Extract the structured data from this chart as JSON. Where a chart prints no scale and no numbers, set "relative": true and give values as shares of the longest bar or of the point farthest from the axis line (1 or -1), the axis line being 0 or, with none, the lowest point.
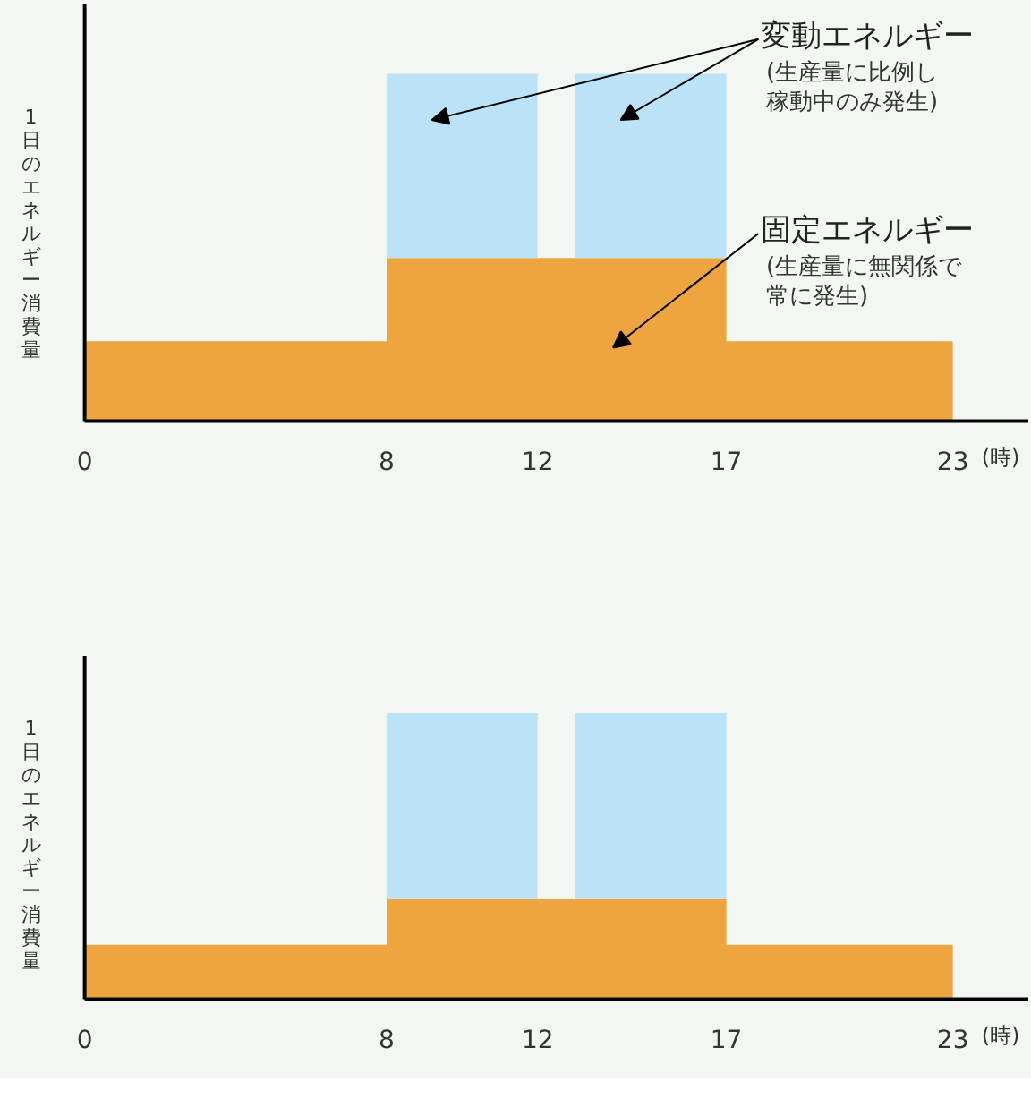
{
  "chart_data": [
    {
      "type": "area",
      "stacked": true,
      "relative": true,
      "ylabel": "1日のエネルギー消費量",
      "xlabel": "(時)",
      "x": [
        0,
        8,
        8,
        12,
        12,
        13,
        13,
        17,
        17,
        23
      ],
      "xlim": [
        0,
        25
      ],
      "xticks": [
        0,
        8,
        12,
        17,
        23
      ],
      "grid": false,
      "series": [
        {
          "name": "固定エネルギー",
          "color": "#efa53f",
          "values": [
            0.23,
            0.23,
            0.47,
            0.47,
            0.47,
            0.47,
            0.47,
            0.47,
            0.23,
            0.23
          ]
        },
        {
          "name": "変動エネルギー",
          "color": "#bbe2f7",
          "values": [
            0,
            0,
            0.53,
            0.53,
            0,
            0,
            0.53,
            0.53,
            0,
            0
          ]
        }
      ],
      "annotations": [
        "(生産量に無関係で",
        "常に発生)",
        "(生産量に比例し",
        "稼動中のみ発生)"
      ]
    },
    {
      "type": "area",
      "stacked": true,
      "relative": true,
      "ylabel": "1日のエネルギー消費量",
      "xlabel": "(時)",
      "x": [
        0,
        8,
        8,
        12,
        12,
        13,
        13,
        17,
        17,
        23
      ],
      "xlim": [
        0,
        25
      ],
      "xticks": [
        0,
        8,
        12,
        17,
        23
      ],
      "grid": false,
      "series": [
        {
          "color": "#efa53f",
          "values": [
            0.19,
            0.19,
            0.35,
            0.35,
            0.35,
            0.35,
            0.35,
            0.35,
            0.19,
            0.19
          ]
        },
        {
          "color": "#bbe2f7",
          "values": [
            0,
            0,
            0.65,
            0.65,
            0,
            0,
            0.65,
            0.65,
            0,
            0
          ]
        }
      ]
    }
  ]
}
